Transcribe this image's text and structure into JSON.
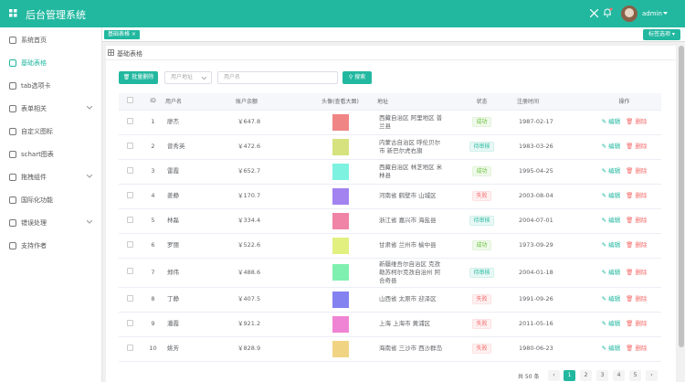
{
  "header": {
    "title": "后台管理系统",
    "user": "admin"
  },
  "sidebar": {
    "items": [
      {
        "label": "系统首页"
      },
      {
        "label": "基础表格",
        "active": true
      },
      {
        "label": "tab选项卡"
      },
      {
        "label": "表单相关",
        "submenu": true
      },
      {
        "label": "自定义图标"
      },
      {
        "label": "schart图表"
      },
      {
        "label": "拖拽组件",
        "submenu": true
      },
      {
        "label": "国际化功能"
      },
      {
        "label": "错误处理",
        "submenu": true
      },
      {
        "label": "支持作者"
      }
    ]
  },
  "tabs": {
    "items": [
      "基础表格"
    ],
    "options": "标签选项"
  },
  "breadcrumb": "基础表格",
  "toolbar": {
    "delete": "批量删除",
    "address_placeholder": "用户地址",
    "name_placeholder": "用户名",
    "search": "搜索"
  },
  "table": {
    "columns": [
      "ID",
      "用户名",
      "账户余额",
      "头像(查看大图)",
      "地址",
      "状态",
      "注册时间",
      "操作"
    ],
    "edit": "编辑",
    "delete": "删除",
    "rows": [
      {
        "id": 1,
        "name": "廖杰",
        "balance": "￥647.8",
        "avatar_color": "#f08585",
        "address": "西藏自治区 阿里地区 普兰县",
        "status": "成功",
        "status_type": "success",
        "date": "1987-02-17"
      },
      {
        "id": 2,
        "name": "曾秀英",
        "balance": "￥472.6",
        "avatar_color": "#d6e27e",
        "address": "内蒙古自治区 呼伦贝尔市 新巴尔虎右旗",
        "status": "待审核",
        "status_type": "pending",
        "date": "1983-03-26"
      },
      {
        "id": 3,
        "name": "雷霞",
        "balance": "￥652.7",
        "avatar_color": "#7ef2e0",
        "address": "西藏自治区 林芝地区 米林县",
        "status": "成功",
        "status_type": "success",
        "date": "1995-04-25"
      },
      {
        "id": 4,
        "name": "姜静",
        "balance": "￥170.7",
        "avatar_color": "#a283f0",
        "address": "河南省 鹤壁市 山城区",
        "status": "失败",
        "status_type": "fail",
        "date": "2003-08-04"
      },
      {
        "id": 5,
        "name": "林磊",
        "balance": "￥334.4",
        "avatar_color": "#f084a6",
        "address": "浙江省 嘉兴市 海盐县",
        "status": "待审核",
        "status_type": "pending",
        "date": "2004-07-01"
      },
      {
        "id": 6,
        "name": "罗丽",
        "balance": "￥522.6",
        "avatar_color": "#e2f080",
        "address": "甘肃省 兰州市 榆中县",
        "status": "成功",
        "status_type": "success",
        "date": "1973-09-29"
      },
      {
        "id": 7,
        "name": "郑伟",
        "balance": "￥488.6",
        "avatar_color": "#80f0b0",
        "address": "新疆维吾尔自治区 克孜勒苏柯尔克孜自治州 阿合奇县",
        "status": "待审核",
        "status_type": "pending",
        "date": "2004-01-18"
      },
      {
        "id": 8,
        "name": "丁静",
        "balance": "￥407.5",
        "avatar_color": "#8482f0",
        "address": "山西省 太原市 迎泽区",
        "status": "失败",
        "status_type": "fail",
        "date": "1991-09-26"
      },
      {
        "id": 9,
        "name": "潘霞",
        "balance": "￥921.2",
        "avatar_color": "#f084d4",
        "address": "上海 上海市 黄浦区",
        "status": "失败",
        "status_type": "fail",
        "date": "2011-05-16"
      },
      {
        "id": 10,
        "name": "姚芳",
        "balance": "￥828.9",
        "avatar_color": "#f0d484",
        "address": "海南省 三沙市 西沙群岛",
        "status": "失败",
        "status_type": "fail",
        "date": "1980-06-23"
      }
    ]
  },
  "pagination": {
    "total": "共 50 条",
    "pages": [
      1,
      2,
      3,
      4,
      5
    ],
    "current": 1
  }
}
